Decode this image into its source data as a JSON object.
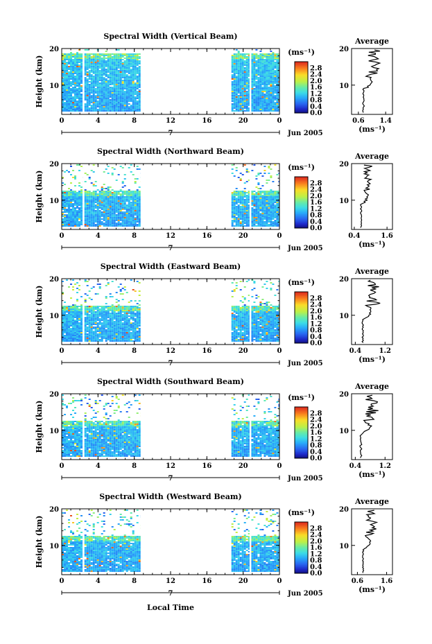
{
  "figure": {
    "xlabel": "Local Time",
    "date_label": "Jun 2005",
    "day_label": "7",
    "average_title": "Average",
    "cbar_unit": "(ms⁻¹)",
    "avg_xlabel": "(ms⁻¹)",
    "ylabel": "Height (km)"
  },
  "chart_data": [
    {
      "type": "heatmap",
      "title": "Spectral Width (Vertical Beam)",
      "xlabel": "",
      "ylabel": "Height (km)",
      "x_ticks": [
        "0",
        "4",
        "8",
        "12",
        "16",
        "20",
        "0"
      ],
      "xlim": [
        0,
        24
      ],
      "ylim": [
        2,
        20
      ],
      "y_ticks": [
        "20",
        "10"
      ],
      "colorbar_ticks": [
        "2.8",
        "2.4",
        "2.0",
        "1.6",
        "1.2",
        "0.8",
        "0.4",
        "0.0"
      ],
      "data_segments_hours": [
        [
          0,
          2.3
        ],
        [
          2.5,
          8.7
        ],
        [
          18.7,
          20.7
        ],
        [
          20.9,
          24
        ]
      ],
      "valid_height_km": [
        2.5,
        18.5
      ],
      "average": {
        "x_ticks": [
          "0.6",
          "1.4"
        ],
        "xlim": [
          0.4,
          1.6
        ],
        "profile_center": 0.75
      }
    },
    {
      "type": "heatmap",
      "title": "Spectral Width (Northward Beam)",
      "xlabel": "",
      "ylabel": "Height (km)",
      "x_ticks": [
        "0",
        "4",
        "8",
        "12",
        "16",
        "20",
        "0"
      ],
      "xlim": [
        0,
        24
      ],
      "ylim": [
        2,
        20
      ],
      "y_ticks": [
        "20",
        "10"
      ],
      "colorbar_ticks": [
        "2.8",
        "2.4",
        "2.0",
        "1.6",
        "1.2",
        "0.8",
        "0.4",
        "0.0"
      ],
      "data_segments_hours": [
        [
          0,
          2.3
        ],
        [
          2.5,
          8.7
        ],
        [
          18.7,
          20.7
        ],
        [
          20.9,
          24
        ]
      ],
      "valid_height_km": [
        2.5,
        12.5
      ],
      "average": {
        "x_ticks": [
          "0.4",
          "1.6"
        ],
        "xlim": [
          0.3,
          1.8
        ],
        "profile_center": 0.65
      }
    },
    {
      "type": "heatmap",
      "title": "Spectral Width (Eastward Beam)",
      "xlabel": "",
      "ylabel": "Height (km)",
      "x_ticks": [
        "0",
        "4",
        "8",
        "12",
        "16",
        "20",
        "0"
      ],
      "xlim": [
        0,
        24
      ],
      "ylim": [
        2,
        20
      ],
      "y_ticks": [
        "20",
        "10"
      ],
      "colorbar_ticks": [
        "2.8",
        "2.4",
        "2.0",
        "1.6",
        "1.2",
        "0.8",
        "0.4",
        "0.0"
      ],
      "data_segments_hours": [
        [
          0,
          2.3
        ],
        [
          2.5,
          8.7
        ],
        [
          18.7,
          20.7
        ],
        [
          20.9,
          24
        ]
      ],
      "valid_height_km": [
        2.5,
        12.5
      ],
      "average": {
        "x_ticks": [
          "0.4",
          "1.2"
        ],
        "xlim": [
          0.3,
          1.4
        ],
        "profile_center": 0.6
      }
    },
    {
      "type": "heatmap",
      "title": "Spectral Width (Southward Beam)",
      "xlabel": "",
      "ylabel": "Height (km)",
      "x_ticks": [
        "0",
        "4",
        "8",
        "12",
        "16",
        "20",
        "0"
      ],
      "xlim": [
        0,
        24
      ],
      "ylim": [
        2,
        20
      ],
      "y_ticks": [
        "20",
        "10"
      ],
      "colorbar_ticks": [
        "2.8",
        "2.4",
        "2.0",
        "1.6",
        "1.2",
        "0.8",
        "0.4",
        "0.0"
      ],
      "data_segments_hours": [
        [
          0,
          2.3
        ],
        [
          2.5,
          8.7
        ],
        [
          18.7,
          20.7
        ],
        [
          20.9,
          24
        ]
      ],
      "valid_height_km": [
        2.5,
        12.5
      ],
      "average": {
        "x_ticks": [
          "0.4",
          "1.2"
        ],
        "xlim": [
          0.3,
          1.4
        ],
        "profile_center": 0.55
      }
    },
    {
      "type": "heatmap",
      "title": "Spectral Width (Westward Beam)",
      "xlabel": "Local Time",
      "ylabel": "Height (km)",
      "x_ticks": [
        "0",
        "4",
        "8",
        "12",
        "16",
        "20",
        "0"
      ],
      "xlim": [
        0,
        24
      ],
      "ylim": [
        2,
        20
      ],
      "y_ticks": [
        "20",
        "10"
      ],
      "colorbar_ticks": [
        "2.8",
        "2.4",
        "2.0",
        "1.6",
        "1.2",
        "0.8",
        "0.4",
        "0.0"
      ],
      "data_segments_hours": [
        [
          0,
          2.3
        ],
        [
          2.5,
          8.7
        ],
        [
          18.7,
          20.7
        ],
        [
          20.9,
          24
        ]
      ],
      "valid_height_km": [
        2.5,
        12.5
      ],
      "average": {
        "x_ticks": [
          "0.6",
          "1.6"
        ],
        "xlim": [
          0.4,
          1.8
        ],
        "profile_center": 0.8
      }
    }
  ]
}
